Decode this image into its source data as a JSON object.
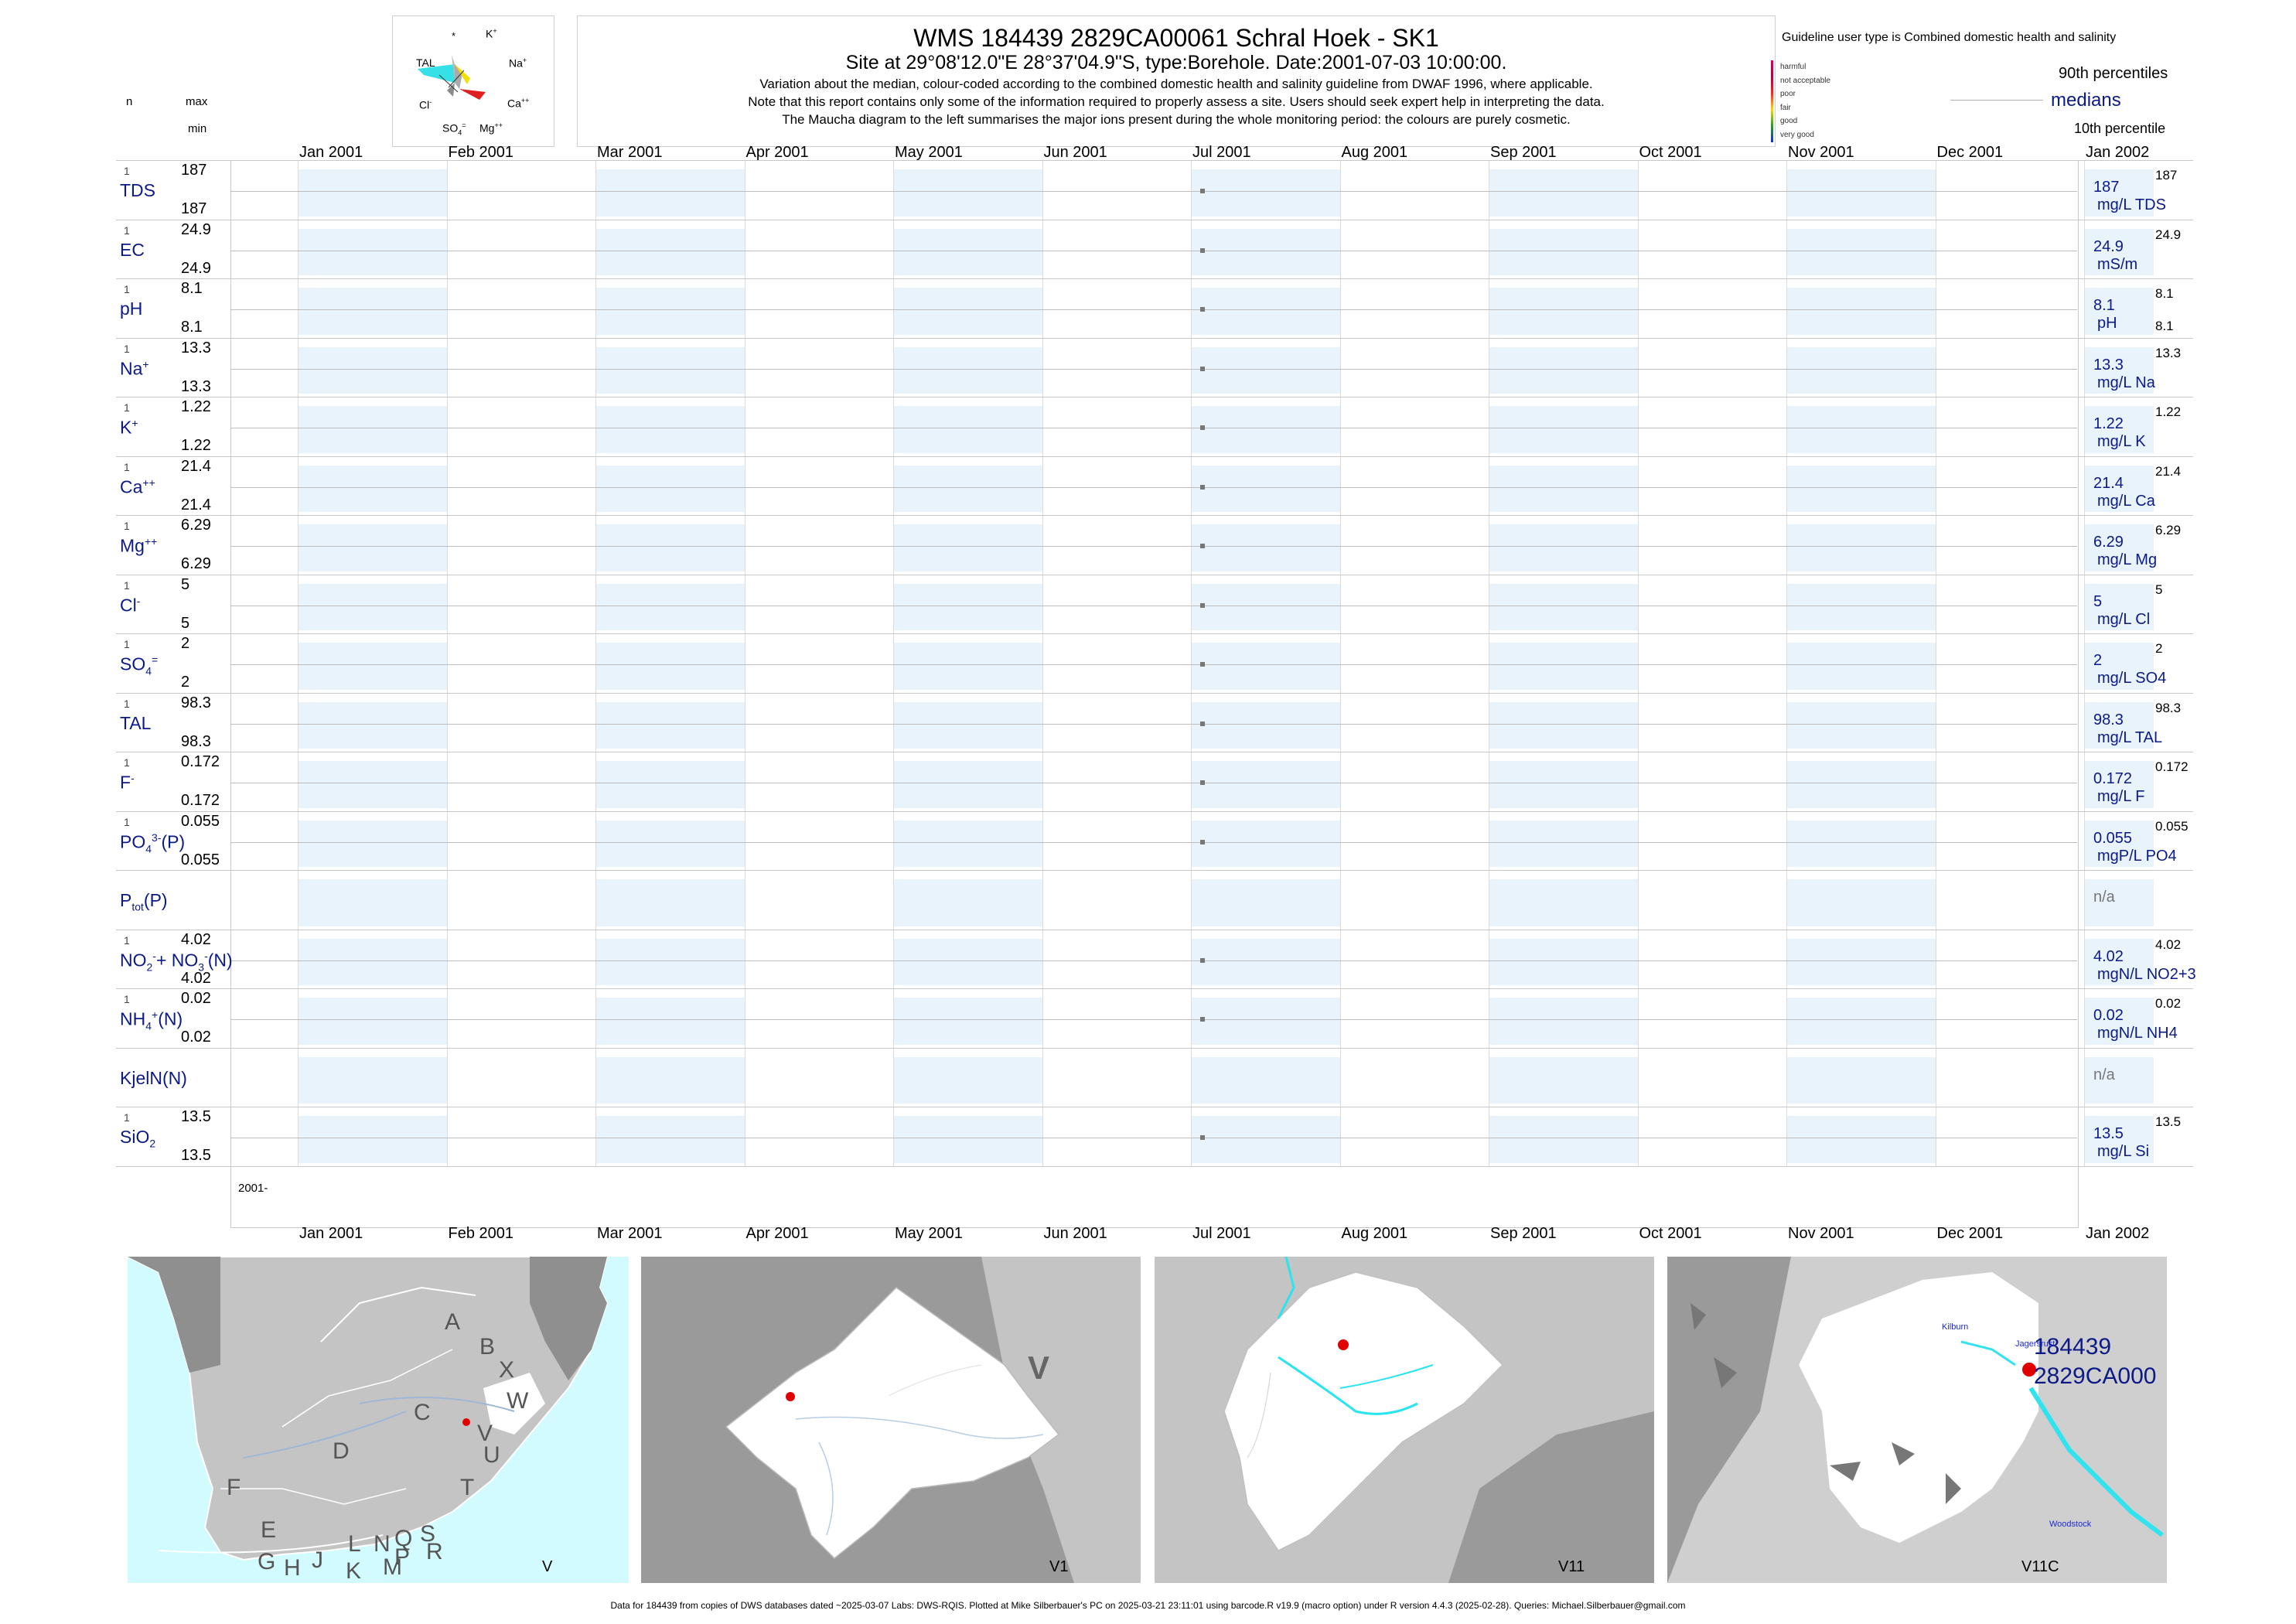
{
  "header": {
    "title": "WMS 184439 2829CA00061 Schral Hoek - SK1",
    "subtitle": "Site at 29°08'12.0\"E 28°37'04.9\"S, type:Borehole. Date:2001-07-03 10:00:00.",
    "line1": "Variation about the median,  colour-coded according to the combined domestic health and salinity guideline from DWAF 1996, where applicable.",
    "line2": "Note that this report contains only some of the information required to properly assess a site. Users should seek expert help in interpreting the data.",
    "line3": "The Maucha diagram to the left summarises the major ions present during the whole monitoring period: the colours are purely cosmetic."
  },
  "left_header": {
    "n": "n",
    "max": "max",
    "min": "min"
  },
  "maucha": {
    "k": "K",
    "k_sup": "+",
    "star": "*",
    "tal": "TAL",
    "na": "Na",
    "na_sup": "+",
    "cl": "Cl",
    "cl_sup": "-",
    "ca": "Ca",
    "ca_sup": "++",
    "so4": "SO",
    "so4_sub": "4",
    "so4_sup": "=",
    "mg": "Mg",
    "mg_sup": "++"
  },
  "legend": {
    "title": "Guideline user type is Combined domestic health and salinity",
    "classes": [
      "harmful",
      "not acceptable",
      "poor",
      "fair",
      "good",
      "very good"
    ],
    "class_colors": [
      "#d4006a",
      "#b0004e",
      "#ff2020",
      "#ffd400",
      "#20a020",
      "#1c2bd0"
    ],
    "p90": "90th percentiles",
    "medians": "medians",
    "p10": "10th percentile"
  },
  "chart_data": {
    "type": "scatter",
    "x_ticks": [
      "Jan 2001",
      "Feb 2001",
      "Mar 2001",
      "Apr 2001",
      "May 2001",
      "Jun 2001",
      "Jul 2001",
      "Aug 2001",
      "Sep 2001",
      "Oct 2001",
      "Nov 2001",
      "Dec 2001",
      "Jan 2002"
    ],
    "sample_date": "2001-07-03",
    "year_label": "2001-",
    "variables": [
      {
        "label": "TDS",
        "sup": "",
        "sub": "",
        "n": "1",
        "max": "187",
        "min": "187",
        "median": "187",
        "unit": "mg/L TDS",
        "p90": "187",
        "p10": ""
      },
      {
        "label": "EC",
        "sup": "",
        "sub": "",
        "n": "1",
        "max": "24.9",
        "min": "24.9",
        "median": "24.9",
        "unit": "mS/m",
        "p90": "24.9",
        "p10": ""
      },
      {
        "label": "pH",
        "sup": "",
        "sub": "",
        "n": "1",
        "max": "8.1",
        "min": "8.1",
        "median": "8.1",
        "unit": "pH",
        "p90": "8.1",
        "p10": "8.1"
      },
      {
        "label": "Na",
        "sup": "+",
        "sub": "",
        "n": "1",
        "max": "13.3",
        "min": "13.3",
        "median": "13.3",
        "unit": "mg/L Na",
        "p90": "13.3",
        "p10": ""
      },
      {
        "label": "K",
        "sup": "+",
        "sub": "",
        "n": "1",
        "max": "1.22",
        "min": "1.22",
        "median": "1.22",
        "unit": "mg/L K",
        "p90": "1.22",
        "p10": ""
      },
      {
        "label": "Ca",
        "sup": "++",
        "sub": "",
        "n": "1",
        "max": "21.4",
        "min": "21.4",
        "median": "21.4",
        "unit": "mg/L Ca",
        "p90": "21.4",
        "p10": ""
      },
      {
        "label": "Mg",
        "sup": "++",
        "sub": "",
        "n": "1",
        "max": "6.29",
        "min": "6.29",
        "median": "6.29",
        "unit": "mg/L Mg",
        "p90": "6.29",
        "p10": ""
      },
      {
        "label": "Cl",
        "sup": "-",
        "sub": "",
        "n": "1",
        "max": "5",
        "min": "5",
        "median": "5",
        "unit": "mg/L Cl",
        "p90": "5",
        "p10": ""
      },
      {
        "label": "SO",
        "sup": "=",
        "sub": "4",
        "n": "1",
        "max": "2",
        "min": "2",
        "median": "2",
        "unit": "mg/L SO4",
        "p90": "2",
        "p10": ""
      },
      {
        "label": "TAL",
        "sup": "",
        "sub": "",
        "n": "1",
        "max": "98.3",
        "min": "98.3",
        "median": "98.3",
        "unit": "mg/L TAL",
        "p90": "98.3",
        "p10": ""
      },
      {
        "label": "F",
        "sup": "-",
        "sub": "",
        "n": "1",
        "max": "0.172",
        "min": "0.172",
        "median": "0.172",
        "unit": "mg/L F",
        "p90": "0.172",
        "p10": ""
      },
      {
        "label": "PO",
        "sup": "3-",
        "sub": "4",
        "suffix": "(P)",
        "n": "1",
        "max": "0.055",
        "min": "0.055",
        "median": "0.055",
        "unit": "mgP/L PO4",
        "p90": "0.055",
        "p10": ""
      },
      {
        "label": "P",
        "sup": "",
        "sub": "tot",
        "suffix": "(P)",
        "n": "",
        "max": "",
        "min": "",
        "median": "n/a",
        "unit": "",
        "p90": "",
        "p10": "",
        "empty": true
      },
      {
        "label": "NO",
        "sup": "-",
        "sub": "2",
        "suffix": "+ NO",
        "sup2": "-",
        "sub2": "3",
        "suffix2": "(N)",
        "n": "1",
        "max": "4.02",
        "min": "4.02",
        "median": "4.02",
        "unit": "mgN/L NO2+3",
        "p90": "4.02",
        "p10": ""
      },
      {
        "label": "NH",
        "sup": "+",
        "sub": "4",
        "suffix": "(N)",
        "n": "1",
        "max": "0.02",
        "min": "0.02",
        "median": "0.02",
        "unit": "mgN/L NH4",
        "p90": "0.02",
        "p10": ""
      },
      {
        "label": "KjelN(N)",
        "sup": "",
        "sub": "",
        "n": "",
        "max": "",
        "min": "",
        "median": "n/a",
        "unit": "",
        "p90": "",
        "p10": "",
        "empty": true
      },
      {
        "label": "SiO",
        "sup": "",
        "sub": "2",
        "n": "1",
        "max": "13.5",
        "min": "13.5",
        "median": "13.5",
        "unit": "mg/L Si",
        "p90": "13.5",
        "p10": ""
      }
    ]
  },
  "maps": {
    "m1_label": "V",
    "m1_regions": [
      "A",
      "B",
      "X",
      "W",
      "C",
      "V",
      "U",
      "D",
      "T",
      "F",
      "E",
      "L",
      "N",
      "Q",
      "S",
      "R",
      "P",
      "M",
      "K",
      "J",
      "H",
      "G"
    ],
    "m2_label": "V1",
    "m2_region": "V",
    "m3_label": "V11",
    "m4_label": "V11C",
    "m4_site_id": "184439",
    "m4_site_code": "2829CA000",
    "m4_kilburn": "Kilburn",
    "m4_jagersrust": "Jagersrust",
    "m4_woodstock": "Woodstock"
  },
  "footer": "Data for 184439 from copies of DWS databases dated ~2025-03-07 Labs: DWS-RQIS. Plotted at Mike Silberbauer's PC on 2025-03-21 23:11:01 using barcode.R v19.9 (macro option) under R version 4.4.3 (2025-02-28). Queries: Michael.Silberbauer@gmail.com"
}
